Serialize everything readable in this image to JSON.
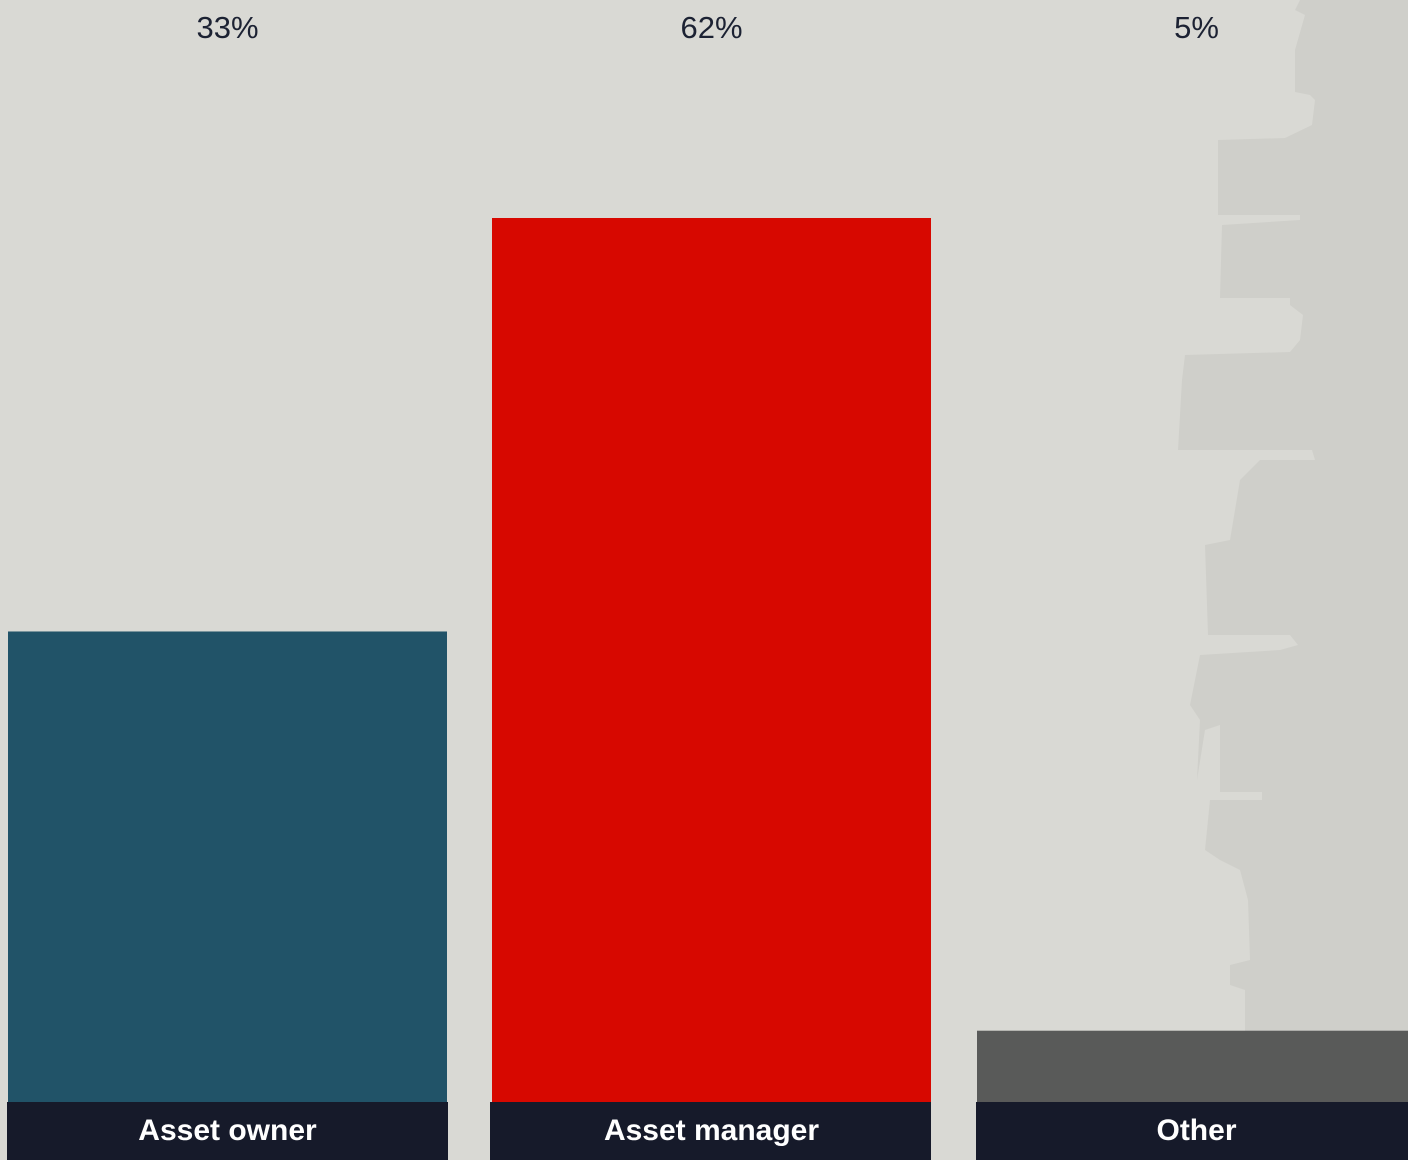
{
  "chart_data": {
    "type": "bar",
    "categories": [
      "Asset owner",
      "Asset manager",
      "Other"
    ],
    "values": [
      33,
      62,
      5
    ],
    "value_labels": [
      "33%",
      "62%",
      "5%"
    ],
    "colors": [
      "#215368",
      "#d70800",
      "#595a59"
    ]
  }
}
